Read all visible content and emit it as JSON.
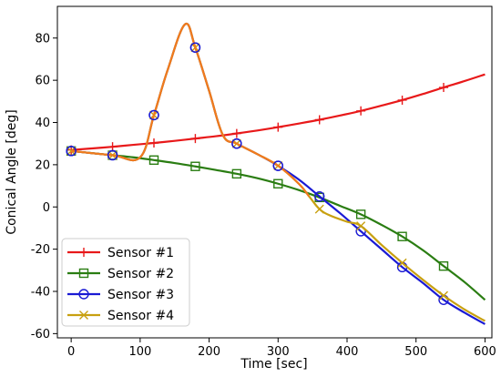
{
  "chart_data": {
    "type": "line",
    "xlabel": "Time [sec]",
    "ylabel": "Conical Angle [deg]",
    "xlim": [
      -20,
      610
    ],
    "ylim": [
      -62,
      95
    ],
    "xticks": [
      0,
      100,
      200,
      300,
      400,
      500,
      600
    ],
    "yticks": [
      -60,
      -40,
      -20,
      0,
      20,
      40,
      60,
      80
    ],
    "grid": false,
    "legend_position": "lower-left",
    "series": [
      {
        "name": "Sensor #1",
        "color": "#e8191a",
        "marker": "plus",
        "x": [
          0,
          30,
          60,
          90,
          120,
          150,
          180,
          210,
          240,
          270,
          300,
          330,
          360,
          390,
          420,
          450,
          480,
          510,
          540,
          570,
          600
        ],
        "y": [
          27,
          27.7,
          28.5,
          29.4,
          30.3,
          31.3,
          32.4,
          33.5,
          34.8,
          36.2,
          37.8,
          39.5,
          41.3,
          43.3,
          45.5,
          48,
          50.6,
          53.5,
          56.6,
          59.6,
          62.8
        ],
        "marker_x": [
          0,
          60,
          120,
          180,
          240,
          300,
          360,
          420,
          480,
          540
        ],
        "marker_y": [
          27,
          28.5,
          30.3,
          32.4,
          34.8,
          37.8,
          41.3,
          45.5,
          50.6,
          56.6
        ]
      },
      {
        "name": "Sensor #2",
        "color": "#2a7d12",
        "marker": "square",
        "x": [
          0,
          30,
          60,
          90,
          120,
          150,
          180,
          210,
          240,
          270,
          300,
          330,
          360,
          390,
          420,
          450,
          480,
          510,
          540,
          570,
          600
        ],
        "y": [
          26.5,
          25.5,
          24.5,
          23.5,
          22.2,
          20.8,
          19.2,
          17.5,
          15.7,
          13.6,
          11,
          8,
          4.5,
          0.5,
          -3.5,
          -8.5,
          -14,
          -20.5,
          -28,
          -35.5,
          -44
        ],
        "marker_x": [
          0,
          60,
          120,
          180,
          240,
          300,
          360,
          420,
          480,
          540
        ],
        "marker_y": [
          26.5,
          24.5,
          22.2,
          19.2,
          15.7,
          11,
          4.5,
          -3.5,
          -14,
          -28
        ]
      },
      {
        "name": "Sensor #3",
        "color": "#1a1ad4",
        "marker": "circle",
        "x": [
          0,
          60,
          100,
          120,
          140,
          165,
          180,
          200,
          220,
          240,
          270,
          300,
          330,
          360,
          390,
          420,
          450,
          480,
          510,
          540,
          570,
          600
        ],
        "y": [
          26.5,
          24.5,
          23.5,
          43.5,
          65,
          86.5,
          75.5,
          55,
          34,
          30,
          25,
          19.5,
          13,
          5,
          -3,
          -11.5,
          -20,
          -28.5,
          -36,
          -44,
          -50,
          -55.5
        ],
        "marker_x": [
          0,
          60,
          120,
          180,
          240,
          300,
          360,
          420,
          480,
          540
        ],
        "marker_y": [
          26.5,
          24.5,
          43.5,
          75.5,
          30,
          19.5,
          5,
          -11.5,
          -28.5,
          -44
        ]
      },
      {
        "name": "Sensor #4",
        "color": "#c8a010",
        "marker": "x",
        "x": [
          0,
          60,
          100,
          120,
          140,
          165,
          180,
          200,
          220,
          240,
          270,
          300,
          330,
          345,
          360,
          375,
          400,
          420,
          450,
          480,
          510,
          540,
          570,
          600
        ],
        "y": [
          26.5,
          24.5,
          23.5,
          43.5,
          65,
          86.5,
          75.5,
          55,
          34,
          30,
          25,
          19.5,
          11,
          5,
          -1,
          -4,
          -7,
          -9,
          -18,
          -26.5,
          -34.5,
          -42,
          -48.5,
          -54
        ],
        "marker_x": [
          0,
          60,
          120,
          180,
          240,
          300,
          360,
          420,
          480,
          540
        ],
        "marker_y": [
          26.5,
          24.5,
          43.5,
          75.5,
          30,
          19.5,
          -1,
          -9,
          -26.5,
          -42
        ]
      }
    ],
    "orange_overlay_color": "#f07a1e"
  }
}
